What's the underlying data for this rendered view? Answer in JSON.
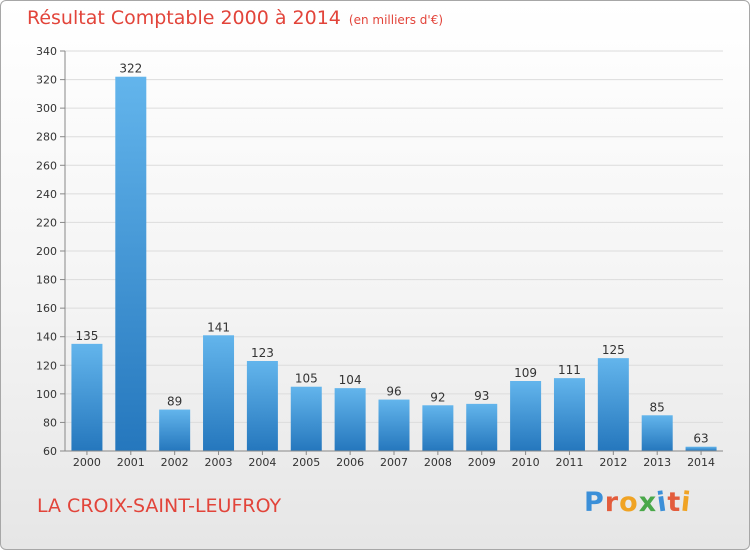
{
  "title": "Résultat Comptable 2000 à 2014",
  "unit": "(en milliers d'€)",
  "commune": "LA CROIX-SAINT-LEUFROY",
  "logo": {
    "text": "Proxiti",
    "colors": [
      "#3b8fd8",
      "#e35c3c",
      "#f0a324",
      "#4aa84a",
      "#3b8fd8",
      "#e35c3c",
      "#f0a324"
    ]
  },
  "colors": {
    "title": "#e2443a",
    "bar_light": "#63b5ec",
    "bar_dark": "#2577bd"
  },
  "chart_data": {
    "type": "bar",
    "title": "Résultat Comptable 2000 à 2014",
    "xlabel": "",
    "ylabel": "",
    "categories": [
      "2000",
      "2001",
      "2002",
      "2003",
      "2004",
      "2005",
      "2006",
      "2007",
      "2008",
      "2009",
      "2010",
      "2011",
      "2012",
      "2013",
      "2014"
    ],
    "values": [
      135,
      322,
      89,
      141,
      123,
      105,
      104,
      96,
      92,
      93,
      109,
      111,
      125,
      85,
      63
    ],
    "ylim": [
      60,
      340
    ],
    "yticks": [
      60,
      80,
      100,
      120,
      140,
      160,
      180,
      200,
      220,
      240,
      260,
      280,
      300,
      320,
      340
    ],
    "grid": true,
    "legend": "none"
  }
}
